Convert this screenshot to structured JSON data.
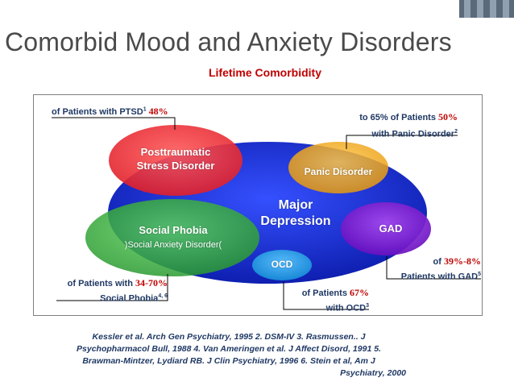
{
  "slide": {
    "title": "Comorbid Mood and Anxiety Disorders",
    "subtitle": "Lifetime Comorbidity"
  },
  "colors": {
    "title": "#4a4a4a",
    "subtitle": "#c00000",
    "label_text": "#1f3864",
    "percent_text": "#c00000",
    "major_depression": "#1a2fd6",
    "ptsd": "#f03a3a",
    "panic": "#f2b01e",
    "gad": "#8a22d6",
    "social": "#3cb043",
    "ocd": "#2fa8e8"
  },
  "diagram": {
    "major_depression": {
      "line1": "Major",
      "line2": "Depression"
    },
    "ptsd": {
      "line1": "Posttraumatic",
      "line2": "Stress Disorder"
    },
    "panic": {
      "label": "Panic Disorder"
    },
    "gad": {
      "label": "GAD"
    },
    "social": {
      "line1": "Social Phobia",
      "line2": ")Social Anxiety Disorder("
    },
    "ocd": {
      "label": "OCD"
    }
  },
  "callouts": {
    "ptsd": {
      "text": "of Patients with PTSD",
      "ref": "1",
      "pct": "48%"
    },
    "panic": {
      "prefix": "to 65% of Patients ",
      "pct": "50%",
      "line2": "with Panic Disorder",
      "ref": "2"
    },
    "gad": {
      "prefix": "of ",
      "pct": "39%-8%",
      "line2": "Patients with GAD",
      "ref": "5"
    },
    "social": {
      "prefix": "of Patients with ",
      "pct": "34-70%",
      "line2": "Social Phobia",
      "ref": "4, 6"
    },
    "ocd": {
      "prefix": "of Patients ",
      "pct": "67%",
      "line2": "with OCD",
      "ref": "3"
    }
  },
  "references": {
    "line1": "Kessler et al. Arch Gen Psychiatry, 1995  2. DSM-IV  3. Rasmussen.. J",
    "line2": "Psychopharmacol Bull, 1988   4. Van Ameringen et al. J Affect Disord, 1991  5.",
    "line3": "Brawman-Mintzer, Lydiard RB. J Clin Psychiatry, 1996   6. Stein et al, Am J",
    "line4": "Psychiatry, 2000"
  }
}
